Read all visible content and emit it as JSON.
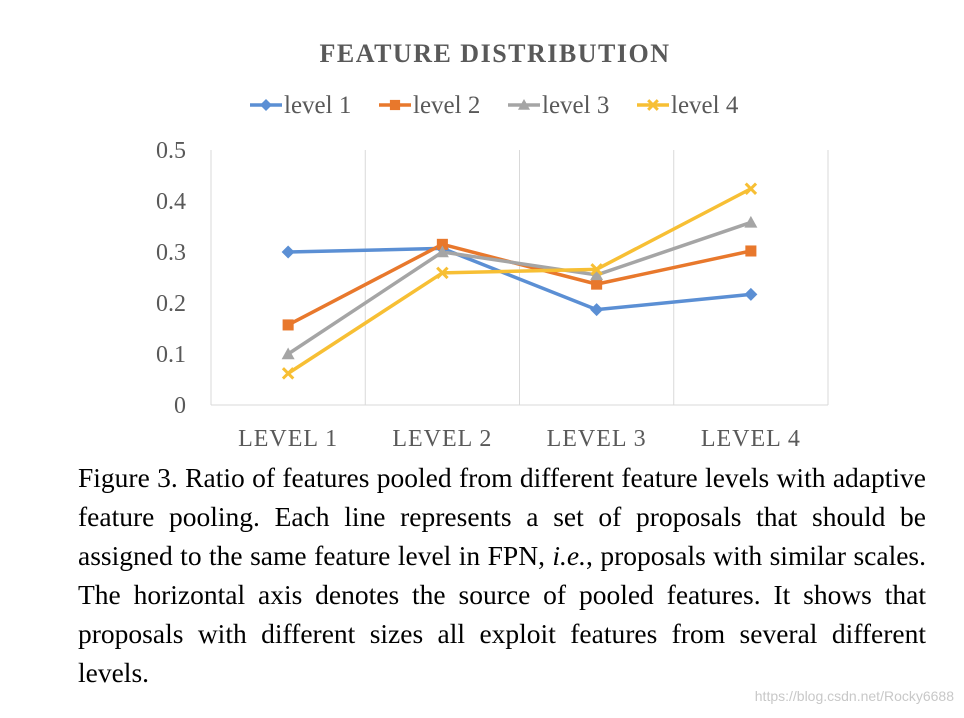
{
  "chart_data": {
    "type": "line",
    "title": "FEATURE DISTRIBUTION",
    "categories": [
      "LEVEL 1",
      "LEVEL 2",
      "LEVEL 3",
      "LEVEL 4"
    ],
    "series": [
      {
        "name": "level 1",
        "values": [
          0.3,
          0.307,
          0.187,
          0.217
        ],
        "color": "#5b8fd4",
        "marker": "diamond"
      },
      {
        "name": "level 2",
        "values": [
          0.157,
          0.315,
          0.237,
          0.302
        ],
        "color": "#e8782c",
        "marker": "square"
      },
      {
        "name": "level 3",
        "values": [
          0.1,
          0.3,
          0.255,
          0.358
        ],
        "color": "#a5a5a5",
        "marker": "triangle"
      },
      {
        "name": "level 4",
        "values": [
          0.062,
          0.259,
          0.266,
          0.424
        ],
        "color": "#f7bf34",
        "marker": "x"
      }
    ],
    "ylim": [
      0,
      0.5
    ],
    "yticks": [
      "0",
      "0.1",
      "0.2",
      "0.3",
      "0.4",
      "0.5"
    ],
    "grid": "vertical",
    "legend_position": "top"
  },
  "caption": {
    "label": "Figure 3.",
    "text_a": " Ratio of features pooled from different feature levels with adaptive feature pooling.  Each line represents a set of proposals that should be assigned to the same feature level in FPN, ",
    "text_italic": "i.e.",
    "text_b": ", proposals with similar scales. The horizontal axis denotes the source of pooled features.  It shows that proposals with different sizes all exploit features from several different levels."
  },
  "watermark": "https://blog.csdn.net/Rocky6688"
}
